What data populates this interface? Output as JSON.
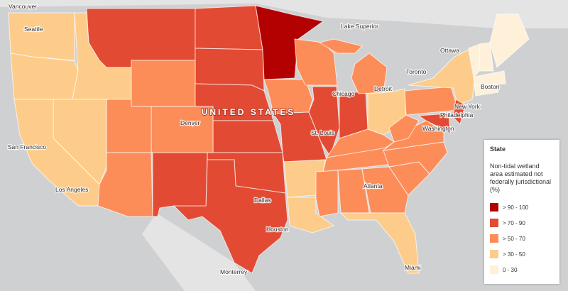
{
  "map": {
    "country_label": "UNITED STATES",
    "places": [
      "Vancouver",
      "Seattle",
      "Lake Superior",
      "Ottawa",
      "Toronto",
      "Detroit",
      "Chicago",
      "Boston",
      "New York",
      "Philadelphia",
      "Washington",
      "Denver",
      "San Francisco",
      "Los Angeles",
      "St. Louis",
      "Atlanta",
      "Dallas",
      "Houston",
      "Monterrey",
      "Miami"
    ]
  },
  "legend": {
    "title": "State",
    "subtitle": "Non-tidal wetland area estimated not federally jurisdictional (%)",
    "classes": [
      {
        "label": "> 90 - 100",
        "color": "#b30000"
      },
      {
        "label": "> 70 - 90",
        "color": "#e34a33"
      },
      {
        "label": "> 50 - 70",
        "color": "#fc8d59"
      },
      {
        "label": "> 30 - 50",
        "color": "#fdcc8a"
      },
      {
        "label": "0 - 30",
        "color": "#fef0d9"
      }
    ]
  }
}
